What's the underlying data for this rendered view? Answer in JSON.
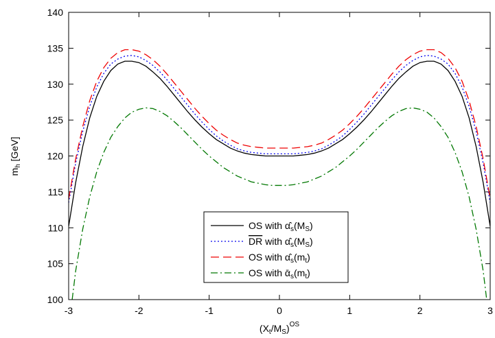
{
  "chart_data": {
    "type": "line",
    "xlabel": {
      "main": "(X",
      "sub1": "t",
      "mid": "/M",
      "sub2": "S",
      "close": ")",
      "sup": "OS"
    },
    "ylabel": {
      "main": "m",
      "sub": "h",
      "unit": " [GeV]"
    },
    "xlim": [
      -3,
      3
    ],
    "ylim": [
      100,
      140
    ],
    "xticks": [
      "-3",
      "-2",
      "-1",
      "0",
      "1",
      "2",
      "3"
    ],
    "yticks": [
      "100",
      "105",
      "110",
      "115",
      "120",
      "125",
      "130",
      "135",
      "140"
    ],
    "legend_position": "bottom-center",
    "series": [
      {
        "name": {
          "pre": "OS with ",
          "sym": "α̂",
          "s": "s",
          "arg": "(M",
          "argsub": "S",
          "end": ")"
        },
        "color": "#000000",
        "dash": "",
        "x": [
          -3.0,
          -2.9,
          -2.8,
          -2.7,
          -2.6,
          -2.5,
          -2.4,
          -2.3,
          -2.2,
          -2.1,
          -2.0,
          -1.9,
          -1.8,
          -1.7,
          -1.6,
          -1.5,
          -1.4,
          -1.3,
          -1.2,
          -1.1,
          -1.0,
          -0.9,
          -0.8,
          -0.7,
          -0.6,
          -0.5,
          -0.4,
          -0.3,
          -0.2,
          -0.1,
          0.0,
          0.1,
          0.2,
          0.3,
          0.4,
          0.5,
          0.6,
          0.7,
          0.8,
          0.9,
          1.0,
          1.1,
          1.2,
          1.3,
          1.4,
          1.5,
          1.6,
          1.7,
          1.8,
          1.9,
          2.0,
          2.1,
          2.2,
          2.3,
          2.4,
          2.5,
          2.6,
          2.7,
          2.8,
          2.9,
          3.0
        ],
        "y": [
          110.2,
          116.3,
          121.3,
          125.3,
          128.3,
          130.4,
          131.9,
          132.8,
          133.2,
          133.2,
          133.0,
          132.5,
          131.7,
          130.8,
          129.7,
          128.5,
          127.3,
          126.1,
          125.0,
          124.0,
          123.1,
          122.3,
          121.7,
          121.1,
          120.7,
          120.4,
          120.2,
          120.1,
          120.0,
          120.0,
          120.0,
          120.0,
          120.0,
          120.1,
          120.2,
          120.4,
          120.7,
          121.1,
          121.7,
          122.3,
          123.1,
          124.0,
          125.0,
          126.1,
          127.3,
          128.5,
          129.7,
          130.8,
          131.7,
          132.5,
          133.0,
          133.2,
          133.2,
          132.8,
          131.9,
          130.4,
          128.3,
          125.3,
          121.3,
          116.3,
          110.2
        ]
      },
      {
        "name": {
          "pre": "",
          "over": "DR",
          "post": " with ",
          "sym": "α̂",
          "s": "s",
          "arg": "(M",
          "argsub": "S",
          "end": ")"
        },
        "color": "#0000ee",
        "dash": "2,3",
        "x": [
          -3.0,
          -2.9,
          -2.8,
          -2.7,
          -2.6,
          -2.5,
          -2.4,
          -2.3,
          -2.2,
          -2.1,
          -2.0,
          -1.9,
          -1.8,
          -1.7,
          -1.6,
          -1.5,
          -1.4,
          -1.3,
          -1.2,
          -1.1,
          -1.0,
          -0.9,
          -0.8,
          -0.7,
          -0.6,
          -0.5,
          -0.4,
          -0.3,
          -0.2,
          -0.1,
          0.0,
          0.1,
          0.2,
          0.3,
          0.4,
          0.5,
          0.6,
          0.7,
          0.8,
          0.9,
          1.0,
          1.1,
          1.2,
          1.3,
          1.4,
          1.5,
          1.6,
          1.7,
          1.8,
          1.9,
          2.0,
          2.1,
          2.2,
          2.3,
          2.4,
          2.5,
          2.6,
          2.7,
          2.8,
          2.9,
          3.0
        ],
        "y": [
          113.5,
          119.0,
          123.4,
          126.9,
          129.6,
          131.5,
          132.8,
          133.5,
          133.9,
          134.0,
          133.8,
          133.3,
          132.6,
          131.7,
          130.6,
          129.4,
          128.2,
          127.0,
          125.8,
          124.7,
          123.7,
          122.8,
          122.1,
          121.5,
          121.0,
          120.7,
          120.5,
          120.4,
          120.3,
          120.3,
          120.3,
          120.3,
          120.3,
          120.4,
          120.5,
          120.7,
          121.0,
          121.5,
          122.1,
          122.8,
          123.7,
          124.7,
          125.8,
          127.0,
          128.2,
          129.4,
          130.6,
          131.7,
          132.6,
          133.3,
          133.8,
          134.0,
          133.9,
          133.5,
          132.8,
          131.5,
          129.6,
          126.9,
          123.4,
          119.0,
          113.5
        ]
      },
      {
        "name": {
          "pre": "OS with ",
          "sym": "α̂",
          "s": "s",
          "arg": "(m",
          "argsub": "t",
          "end": ")"
        },
        "color": "#ee0000",
        "dash": "12,6",
        "x": [
          -3.0,
          -2.9,
          -2.8,
          -2.7,
          -2.6,
          -2.5,
          -2.4,
          -2.3,
          -2.2,
          -2.1,
          -2.0,
          -1.9,
          -1.8,
          -1.7,
          -1.6,
          -1.5,
          -1.4,
          -1.3,
          -1.2,
          -1.1,
          -1.0,
          -0.9,
          -0.8,
          -0.7,
          -0.6,
          -0.5,
          -0.4,
          -0.3,
          -0.2,
          -0.1,
          0.0,
          0.1,
          0.2,
          0.3,
          0.4,
          0.5,
          0.6,
          0.7,
          0.8,
          0.9,
          1.0,
          1.1,
          1.2,
          1.3,
          1.4,
          1.5,
          1.6,
          1.7,
          1.8,
          1.9,
          2.0,
          2.1,
          2.2,
          2.3,
          2.4,
          2.5,
          2.6,
          2.7,
          2.8,
          2.9,
          3.0
        ],
        "y": [
          114.0,
          119.6,
          124.1,
          127.7,
          130.4,
          132.3,
          133.6,
          134.4,
          134.8,
          134.8,
          134.6,
          134.1,
          133.4,
          132.5,
          131.4,
          130.2,
          129.0,
          127.8,
          126.6,
          125.5,
          124.5,
          123.6,
          122.9,
          122.3,
          121.8,
          121.5,
          121.3,
          121.2,
          121.1,
          121.1,
          121.1,
          121.1,
          121.1,
          121.2,
          121.3,
          121.5,
          121.8,
          122.3,
          122.9,
          123.6,
          124.5,
          125.5,
          126.6,
          127.8,
          129.0,
          130.2,
          131.4,
          132.5,
          133.4,
          134.1,
          134.6,
          134.8,
          134.8,
          134.4,
          133.6,
          132.3,
          130.4,
          127.7,
          124.1,
          119.6,
          114.0
        ]
      },
      {
        "name": {
          "pre": "OS with ",
          "sym": "ᾱ",
          "s": "s",
          "arg": "(m",
          "argsub": "t",
          "end": ")"
        },
        "color": "#007700",
        "dash": "10,4,2,4",
        "x": [
          -2.95,
          -2.9,
          -2.8,
          -2.7,
          -2.6,
          -2.5,
          -2.4,
          -2.3,
          -2.2,
          -2.1,
          -2.0,
          -1.9,
          -1.8,
          -1.7,
          -1.6,
          -1.5,
          -1.4,
          -1.3,
          -1.2,
          -1.1,
          -1.0,
          -0.9,
          -0.8,
          -0.7,
          -0.6,
          -0.5,
          -0.4,
          -0.3,
          -0.2,
          -0.1,
          0.0,
          0.1,
          0.2,
          0.3,
          0.4,
          0.5,
          0.6,
          0.7,
          0.8,
          0.9,
          1.0,
          1.1,
          1.2,
          1.3,
          1.4,
          1.5,
          1.6,
          1.7,
          1.8,
          1.9,
          2.0,
          2.1,
          2.2,
          2.3,
          2.4,
          2.5,
          2.6,
          2.7,
          2.8,
          2.9,
          2.95
        ],
        "y": [
          100.0,
          104.0,
          109.8,
          114.3,
          117.8,
          120.5,
          122.6,
          124.1,
          125.3,
          126.1,
          126.5,
          126.7,
          126.6,
          126.2,
          125.6,
          124.8,
          123.9,
          122.9,
          121.9,
          120.9,
          120.0,
          119.2,
          118.4,
          117.8,
          117.2,
          116.8,
          116.4,
          116.2,
          116.0,
          115.9,
          115.9,
          115.9,
          116.0,
          116.2,
          116.4,
          116.8,
          117.2,
          117.8,
          118.4,
          119.2,
          120.0,
          120.9,
          121.9,
          122.9,
          123.9,
          124.8,
          125.6,
          126.2,
          126.6,
          126.7,
          126.5,
          126.1,
          125.3,
          124.1,
          122.6,
          120.5,
          117.8,
          114.3,
          109.8,
          104.0,
          100.0
        ]
      }
    ]
  }
}
